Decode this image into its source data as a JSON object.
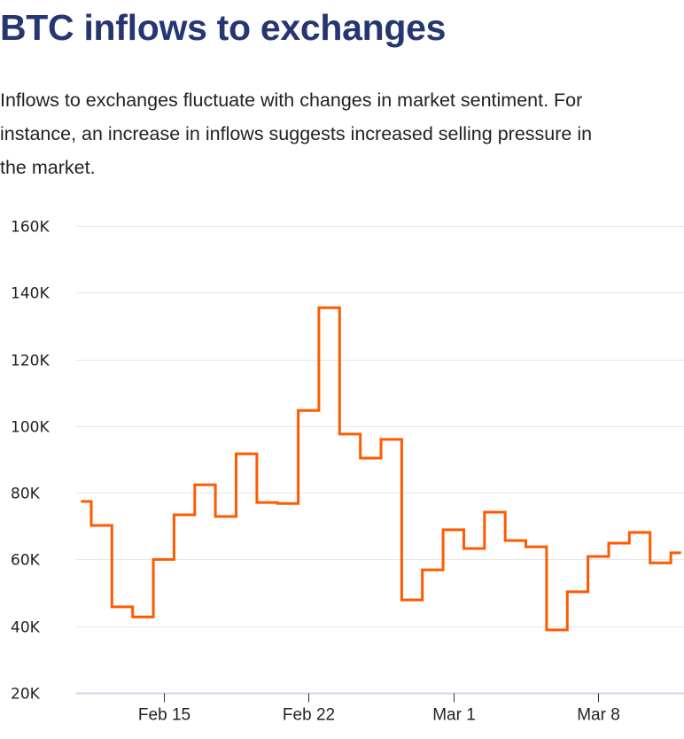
{
  "header": {
    "title": "BTC inflows to exchanges",
    "subtitle": "Inflows to exchanges fluctuate with changes in market sentiment. For instance, an increase in inflows suggests increased selling pressure in the market."
  },
  "colors": {
    "title": "#263671",
    "line": "#FF5A00",
    "grid": "#E6E6E6",
    "x_axis": "#CCD6EB"
  },
  "chart_data": {
    "type": "line",
    "step": "center",
    "title": "BTC inflows to exchanges",
    "xlabel": "",
    "ylabel": "",
    "ylim": [
      20000,
      160000
    ],
    "grid": true,
    "legend": "none",
    "y_ticks": [
      20000,
      40000,
      60000,
      80000,
      100000,
      120000,
      140000,
      160000
    ],
    "y_tick_labels": [
      "20K",
      "40K",
      "60K",
      "80K",
      "100K",
      "120K",
      "140K",
      "160K"
    ],
    "x_tick_labels": [
      "Feb 15",
      "Feb 22",
      "Mar 1",
      "Mar 8"
    ],
    "x_tick_index": [
      4,
      11,
      18,
      25
    ],
    "x": [
      "Feb 11",
      "Feb 12",
      "Feb 13",
      "Feb 14",
      "Feb 15",
      "Feb 16",
      "Feb 17",
      "Feb 18",
      "Feb 19",
      "Feb 20",
      "Feb 21",
      "Feb 22",
      "Feb 23",
      "Feb 24",
      "Feb 25",
      "Feb 26",
      "Feb 27",
      "Feb 28",
      "Mar 1",
      "Mar 2",
      "Mar 3",
      "Mar 4",
      "Mar 5",
      "Mar 6",
      "Mar 7",
      "Mar 8",
      "Mar 9",
      "Mar 10",
      "Mar 11",
      "Mar 12"
    ],
    "series": [
      {
        "name": "BTC inflows",
        "values": [
          77400,
          70200,
          45800,
          42800,
          60000,
          73400,
          82400,
          72900,
          91700,
          77100,
          76800,
          104700,
          135500,
          97600,
          90400,
          96000,
          47900,
          56900,
          68900,
          63300,
          74200,
          65700,
          63800,
          38900,
          50300,
          60900,
          64900,
          68100,
          59000,
          62000
        ]
      }
    ]
  }
}
